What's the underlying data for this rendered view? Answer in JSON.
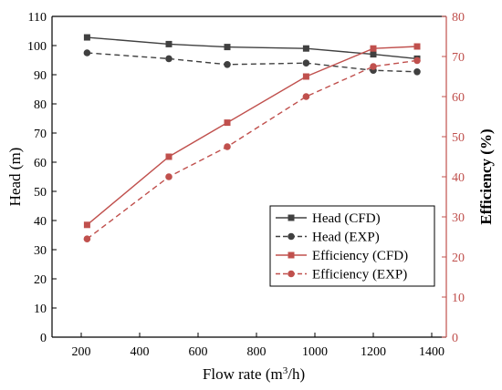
{
  "chart_data": {
    "type": "line",
    "xlabel_base": "Flow rate (m",
    "xlabel_sup": "3",
    "xlabel_tail": "/h)",
    "ylabel_left": "Head (m)",
    "ylabel_right": "Efficiency (%)",
    "xlim": [
      100,
      1450
    ],
    "xticks": [
      200,
      400,
      600,
      800,
      1000,
      1200,
      1400
    ],
    "ylim_left": [
      0,
      110
    ],
    "yticks_left": [
      0,
      10,
      20,
      30,
      40,
      50,
      60,
      70,
      80,
      90,
      100,
      110
    ],
    "ylim_right": [
      0,
      80
    ],
    "yticks_right": [
      0,
      10,
      20,
      30,
      40,
      50,
      60,
      70,
      80
    ],
    "legend_position": "center-right",
    "colors": {
      "head": "#404040",
      "efficiency": "#c0504d",
      "right_axis": "#c0504d"
    },
    "series": [
      {
        "name": "Head (CFD)",
        "axis": "left",
        "dash": false,
        "marker": "square",
        "color": "#404040",
        "x": [
          220,
          500,
          700,
          970,
          1200,
          1350
        ],
        "y": [
          102.8,
          100.5,
          99.5,
          99.0,
          97.0,
          95.5
        ]
      },
      {
        "name": "Head (EXP)",
        "axis": "left",
        "dash": true,
        "marker": "circle",
        "color": "#404040",
        "x": [
          220,
          500,
          700,
          970,
          1200,
          1350
        ],
        "y": [
          97.5,
          95.5,
          93.5,
          94.0,
          91.5,
          91.0
        ]
      },
      {
        "name": "Efficiency (CFD)",
        "axis": "right",
        "dash": false,
        "marker": "square",
        "color": "#c0504d",
        "x": [
          220,
          500,
          700,
          970,
          1200,
          1350
        ],
        "y": [
          28.0,
          45.0,
          53.5,
          65.0,
          72.0,
          72.5
        ]
      },
      {
        "name": "Efficiency (EXP)",
        "axis": "right",
        "dash": true,
        "marker": "circle",
        "color": "#c0504d",
        "x": [
          220,
          500,
          700,
          970,
          1200,
          1350
        ],
        "y": [
          24.5,
          40.0,
          47.5,
          60.0,
          67.5,
          69.0
        ]
      }
    ]
  }
}
